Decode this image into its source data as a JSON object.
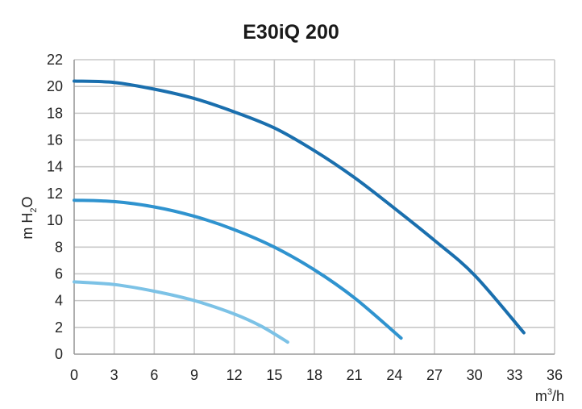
{
  "chart_data": {
    "type": "line",
    "title": "E30iQ 200",
    "xlabel": "m3/h",
    "ylabel": "m H2O",
    "xlim": [
      0,
      36
    ],
    "ylim": [
      0,
      22
    ],
    "x_ticks": [
      0,
      3,
      6,
      9,
      12,
      15,
      18,
      21,
      24,
      27,
      30,
      33,
      36
    ],
    "y_ticks": [
      0,
      2,
      4,
      6,
      8,
      10,
      12,
      14,
      16,
      18,
      20,
      22
    ],
    "grid": true,
    "series": [
      {
        "color": "#1a6fae",
        "points": [
          [
            0,
            20.4
          ],
          [
            3,
            20.3
          ],
          [
            6,
            19.8
          ],
          [
            9,
            19.1
          ],
          [
            12,
            18.1
          ],
          [
            15,
            16.9
          ],
          [
            18,
            15.2
          ],
          [
            21,
            13.2
          ],
          [
            24,
            10.9
          ],
          [
            27,
            8.5
          ],
          [
            30,
            5.9
          ],
          [
            33.7,
            1.6
          ]
        ]
      },
      {
        "color": "#2f93cf",
        "points": [
          [
            0,
            11.5
          ],
          [
            3,
            11.4
          ],
          [
            6,
            11.0
          ],
          [
            9,
            10.3
          ],
          [
            12,
            9.3
          ],
          [
            15,
            8.0
          ],
          [
            18,
            6.3
          ],
          [
            21,
            4.2
          ],
          [
            24.5,
            1.2
          ]
        ]
      },
      {
        "color": "#7cc2e6",
        "points": [
          [
            0,
            5.4
          ],
          [
            3,
            5.2
          ],
          [
            6,
            4.7
          ],
          [
            9,
            4.0
          ],
          [
            12,
            3.0
          ],
          [
            14,
            2.1
          ],
          [
            16,
            0.9
          ]
        ]
      }
    ]
  }
}
